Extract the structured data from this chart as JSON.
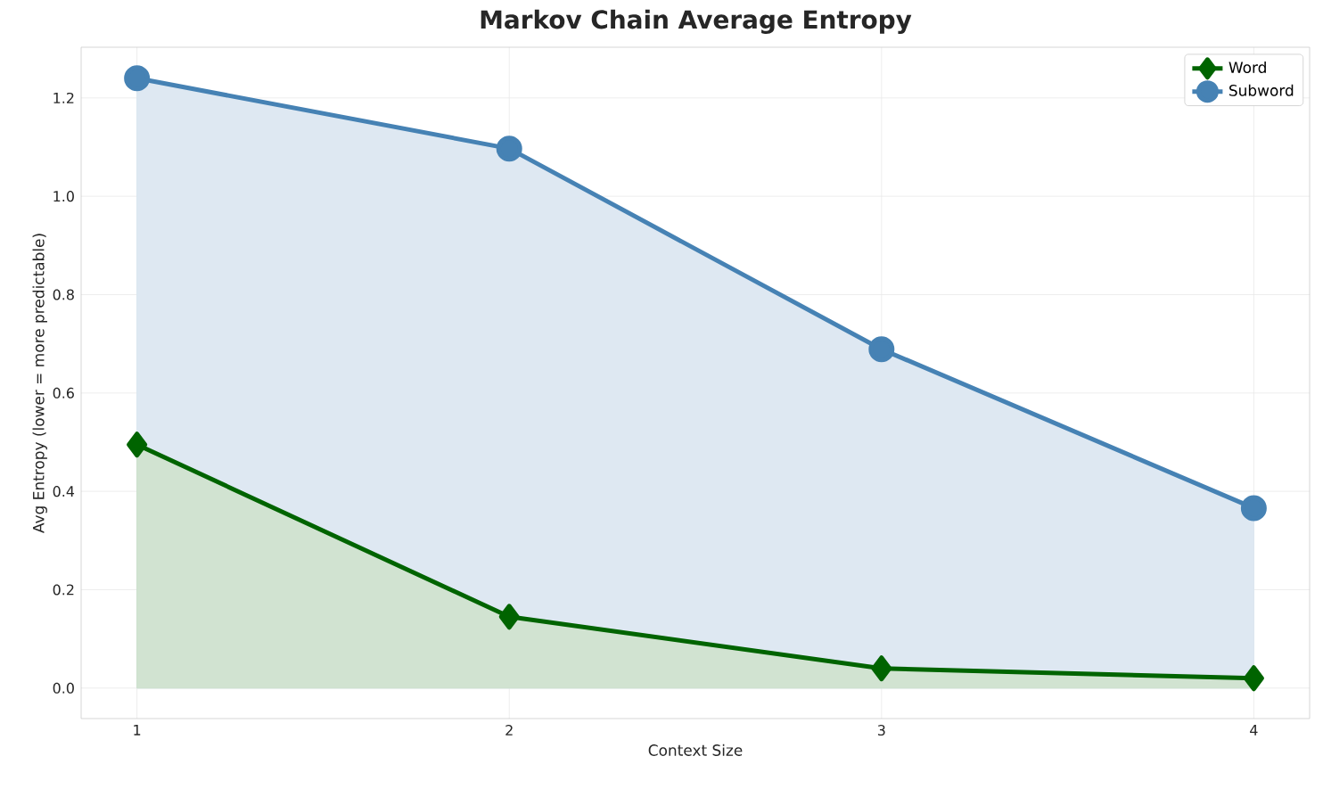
{
  "chart_data": {
    "type": "area",
    "title": "Markov Chain Average Entropy",
    "xlabel": "Context Size",
    "ylabel": "Avg Entropy (lower = more predictable)",
    "x": [
      1,
      2,
      3,
      4
    ],
    "series": [
      {
        "name": "Word",
        "color": "#006400",
        "marker": "diamond",
        "values": [
          0.495,
          0.145,
          0.04,
          0.02
        ]
      },
      {
        "name": "Subword",
        "color": "#4682b4",
        "marker": "circle",
        "values": [
          1.24,
          1.097,
          0.689,
          0.366
        ]
      }
    ],
    "xlim": [
      0.85,
      4.15
    ],
    "ylim": [
      -0.062,
      1.303
    ],
    "xticks": [
      1,
      2,
      3,
      4
    ],
    "yticks": [
      {
        "value": 0,
        "label": "0.0"
      },
      {
        "value": 0.2,
        "label": "0.2"
      },
      {
        "value": 0.4,
        "label": "0.4"
      },
      {
        "value": 0.6,
        "label": "0.6"
      },
      {
        "value": 0.8,
        "label": "0.8"
      },
      {
        "value": 1.0,
        "label": "1.0"
      },
      {
        "value": 1.2,
        "label": "1.2"
      }
    ],
    "grid": true,
    "legend": "top right"
  }
}
